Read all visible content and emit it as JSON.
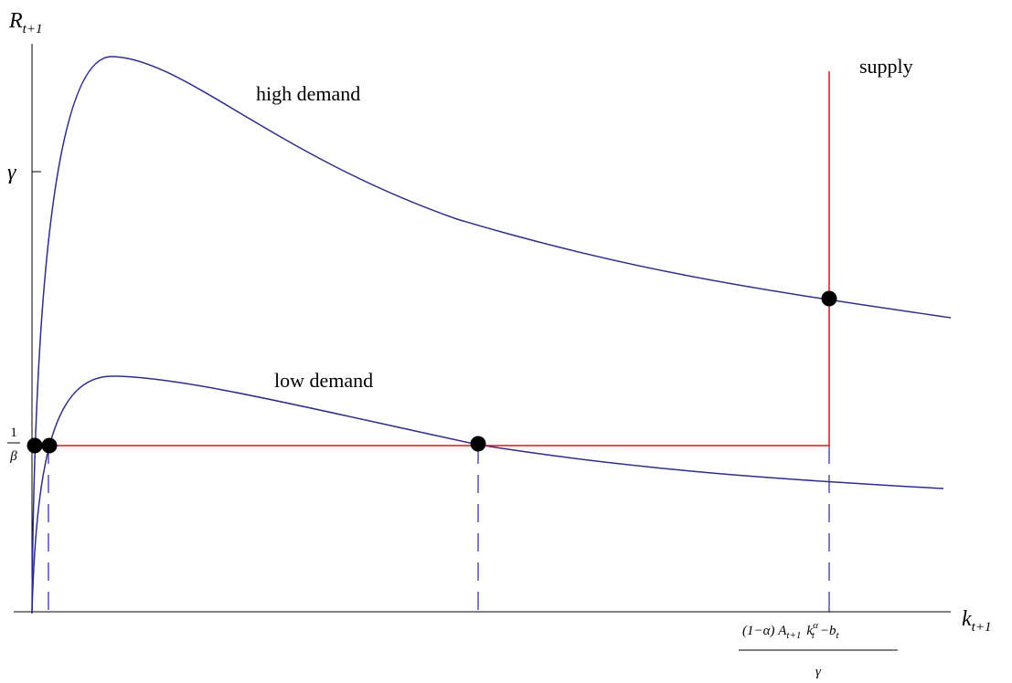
{
  "axes": {
    "y_label": {
      "base": "R",
      "sub": "t+1"
    },
    "x_label": {
      "base": "k",
      "sub": "t+1"
    }
  },
  "y_ticks": {
    "upper": "γ",
    "lower_num": "1",
    "lower_den": "β"
  },
  "curve_labels": {
    "high": "high demand",
    "low": "low demand",
    "supply": "supply"
  },
  "x_tick": {
    "num_a": "(1−α) A",
    "num_a_sub": "t+1",
    "num_k": "k",
    "num_k_sup": "α",
    "num_k_sub": "t",
    "num_b": "−b",
    "num_b_sub": "t",
    "den": "γ"
  }
}
